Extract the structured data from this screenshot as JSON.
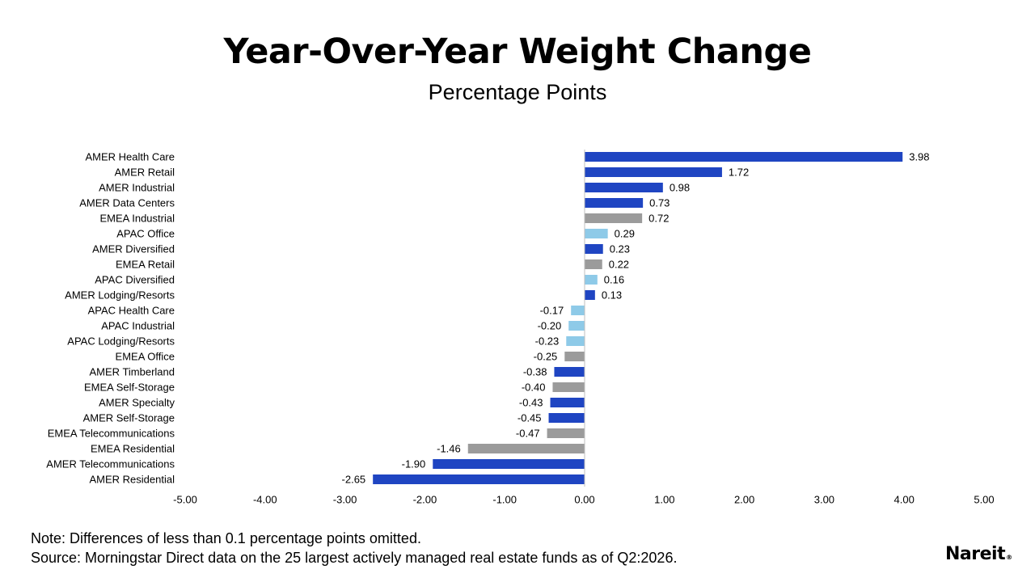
{
  "header": {
    "title": "Year-Over-Year Weight Change",
    "subtitle": "Percentage Points"
  },
  "footer": {
    "note": "Note: Differences of less than 0.1 percentage points omitted.",
    "source": "Source: Morningstar Direct data on the 25 largest actively managed real estate funds as of Q2:2026."
  },
  "logo": {
    "text": "Nareit",
    "mark": "®"
  },
  "colors": {
    "AMER": "#1f45c2",
    "EMEA": "#9b9b9b",
    "APAC": "#8ecae8",
    "axis": "#bfbfbf"
  },
  "chart_data": {
    "type": "bar",
    "orientation": "horizontal",
    "categories": [
      "AMER Health Care",
      "AMER Retail",
      "AMER Industrial",
      "AMER Data Centers",
      "EMEA Industrial",
      "APAC Office",
      "AMER Diversified",
      "EMEA Retail",
      "APAC Diversified",
      "AMER Lodging/Resorts",
      "APAC Health Care",
      "APAC Industrial",
      "APAC Lodging/Resorts",
      "EMEA Office",
      "AMER Timberland",
      "EMEA Self-Storage",
      "AMER Specialty",
      "AMER Self-Storage",
      "EMEA Telecommunications",
      "EMEA Residential",
      "AMER Telecommunications",
      "AMER Residential"
    ],
    "values": [
      3.98,
      1.72,
      0.98,
      0.73,
      0.72,
      0.29,
      0.23,
      0.22,
      0.16,
      0.13,
      -0.17,
      -0.2,
      -0.23,
      -0.25,
      -0.38,
      -0.4,
      -0.43,
      -0.45,
      -0.47,
      -1.46,
      -1.9,
      -2.65
    ],
    "value_labels": [
      "3.98",
      "1.72",
      "0.98",
      "0.73",
      "0.72",
      "0.29",
      "0.23",
      "0.22",
      "0.16",
      "0.13",
      "-0.17",
      "-0.20",
      "-0.23",
      "-0.25",
      "-0.38",
      "-0.40",
      "-0.43",
      "-0.45",
      "-0.47",
      "-1.46",
      "-1.90",
      "-2.65"
    ],
    "regions": [
      "AMER",
      "AMER",
      "AMER",
      "AMER",
      "EMEA",
      "APAC",
      "AMER",
      "EMEA",
      "APAC",
      "AMER",
      "APAC",
      "APAC",
      "APAC",
      "EMEA",
      "AMER",
      "EMEA",
      "AMER",
      "AMER",
      "EMEA",
      "EMEA",
      "AMER",
      "AMER"
    ],
    "xlim": [
      -5,
      5
    ],
    "xticks": [
      -5,
      -4,
      -3,
      -2,
      -1,
      0,
      1,
      2,
      3,
      4,
      5
    ],
    "xtick_labels": [
      "-5.00",
      "-4.00",
      "-3.00",
      "-2.00",
      "-1.00",
      "0.00",
      "1.00",
      "2.00",
      "3.00",
      "4.00",
      "5.00"
    ],
    "title": "Year-Over-Year Weight Change",
    "subtitle": "Percentage Points",
    "grid": false,
    "legend": "none"
  }
}
